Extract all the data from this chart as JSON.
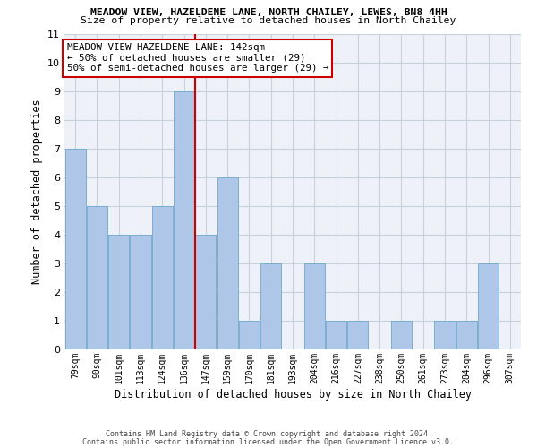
{
  "title1": "MEADOW VIEW, HAZELDENE LANE, NORTH CHAILEY, LEWES, BN8 4HH",
  "title2": "Size of property relative to detached houses in North Chailey",
  "xlabel": "Distribution of detached houses by size in North Chailey",
  "ylabel": "Number of detached properties",
  "categories": [
    "79sqm",
    "90sqm",
    "101sqm",
    "113sqm",
    "124sqm",
    "136sqm",
    "147sqm",
    "159sqm",
    "170sqm",
    "181sqm",
    "193sqm",
    "204sqm",
    "216sqm",
    "227sqm",
    "238sqm",
    "250sqm",
    "261sqm",
    "273sqm",
    "284sqm",
    "296sqm",
    "307sqm"
  ],
  "values": [
    7,
    5,
    4,
    4,
    5,
    9,
    4,
    6,
    1,
    3,
    0,
    3,
    1,
    1,
    0,
    1,
    0,
    1,
    1,
    3,
    0
  ],
  "bar_color": "#aec6e8",
  "bar_edge_color": "#7aaed0",
  "vline_x": 5.5,
  "vline_color": "#cc0000",
  "ylim": [
    0,
    11
  ],
  "yticks": [
    0,
    1,
    2,
    3,
    4,
    5,
    6,
    7,
    8,
    9,
    10,
    11
  ],
  "annotation_text": "MEADOW VIEW HAZELDENE LANE: 142sqm\n← 50% of detached houses are smaller (29)\n50% of semi-detached houses are larger (29) →",
  "annotation_box_color": "#ffffff",
  "annotation_box_edge": "#cc0000",
  "footer1": "Contains HM Land Registry data © Crown copyright and database right 2024.",
  "footer2": "Contains public sector information licensed under the Open Government Licence v3.0.",
  "background_color": "#eef2f8",
  "grid_color": "#c8d0dc"
}
